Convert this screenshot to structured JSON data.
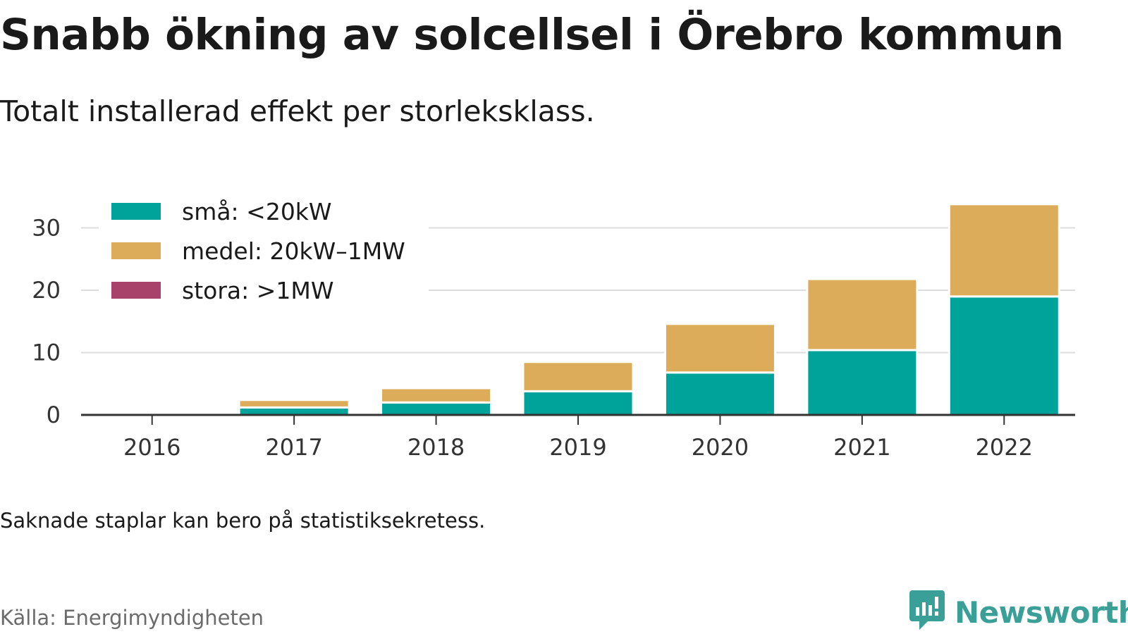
{
  "title": "Snabb ökning av solcellsel i Örebro kommun",
  "subtitle": "Totalt installerad effekt per storleksklass.",
  "note": "Saknade staplar kan bero på statistiksekretess.",
  "source": "Källa: Energimyndigheten",
  "brand": {
    "name": "Newsworthy",
    "icon": "newsworthy-logo-icon",
    "color": "#3a9f96"
  },
  "chart_data": {
    "type": "bar",
    "stacked": true,
    "categories": [
      "2016",
      "2017",
      "2018",
      "2019",
      "2020",
      "2021",
      "2022"
    ],
    "series": [
      {
        "name": "små: <20kW",
        "color": "#00a39a",
        "values": [
          0.1,
          1.2,
          2.0,
          3.8,
          6.8,
          10.4,
          19.0
        ]
      },
      {
        "name": "medel: 20kW–1MW",
        "color": "#dcac5a",
        "values": [
          0.2,
          1.2,
          2.3,
          4.7,
          7.8,
          11.4,
          14.8
        ]
      },
      {
        "name": "stora: >1MW",
        "color": "#a8426a",
        "values": [
          0,
          0,
          0,
          0,
          0,
          0,
          0
        ]
      }
    ],
    "yticks": [
      0,
      10,
      20,
      30
    ],
    "ylim": [
      0,
      35
    ],
    "grid": true,
    "legend": "top-left",
    "xlabel": "",
    "ylabel": ""
  }
}
